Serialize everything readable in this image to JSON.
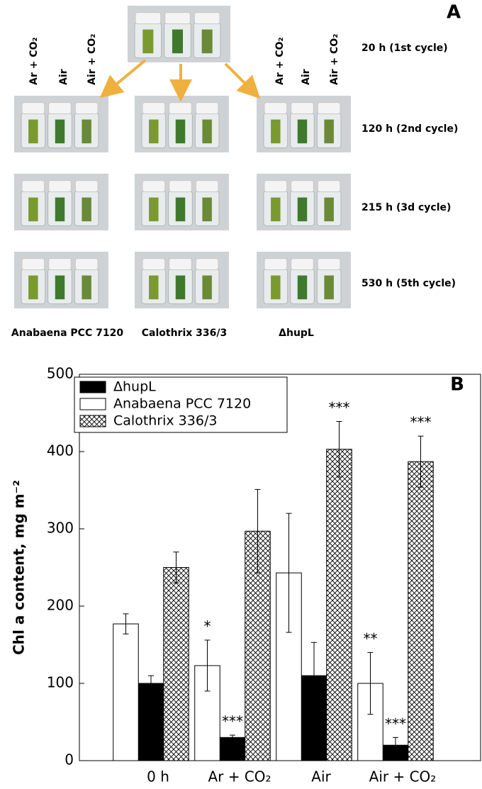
{
  "panel_a": {
    "label": "A",
    "conditions": [
      "Ar + CO₂",
      "Air",
      "Air + CO₂"
    ],
    "times": [
      "20 h (1st cycle)",
      "120 h (2nd cycle)",
      "215 h (3d cycle)",
      "530 h (5th cycle)"
    ],
    "strains": [
      "Anabaena PCC 7120",
      "Calothrix 336/3",
      "ΔhupL"
    ]
  },
  "chart_data": {
    "type": "bar",
    "panel_label": "B",
    "ylabel": "Chl a content, mg m⁻²",
    "categories": [
      "0 h",
      "Ar + CO₂",
      "Air",
      "Air + CO₂"
    ],
    "ylim": [
      0,
      500
    ],
    "yticks": [
      0,
      100,
      200,
      300,
      400,
      500
    ],
    "legend": "upper left",
    "series": [
      {
        "name": "ΔhupL",
        "color": "#000000",
        "values": [
          100,
          30,
          110,
          20
        ],
        "errors": [
          10,
          3,
          43,
          10
        ],
        "annotations": [
          null,
          "***",
          null,
          "***"
        ]
      },
      {
        "name": "Anabaena PCC 7120",
        "color": "#ffffff",
        "values": [
          177,
          123,
          243,
          100
        ],
        "errors": [
          13,
          33,
          77,
          40
        ],
        "annotations": [
          null,
          "*",
          null,
          "**"
        ]
      },
      {
        "name": "Calothrix 336/3",
        "color": "hatch",
        "values": [
          250,
          297,
          403,
          387
        ],
        "errors": [
          20,
          54,
          36,
          33
        ],
        "annotations": [
          null,
          null,
          "***",
          "***"
        ]
      }
    ]
  }
}
